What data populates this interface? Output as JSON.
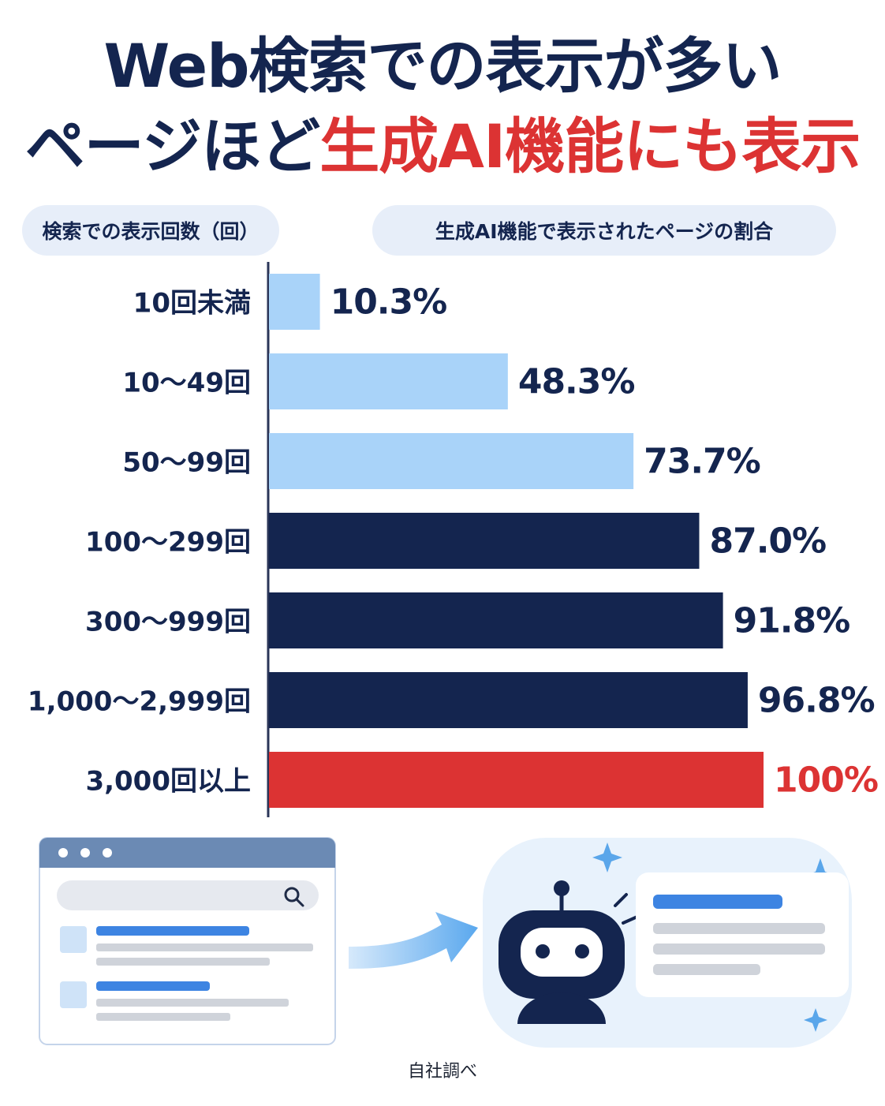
{
  "title": {
    "line1": "Web検索での表示が多い",
    "line2_prefix": "ページほど",
    "line2_accent": "生成AI機能にも表示"
  },
  "headers": {
    "left": "検索での表示回数（回）",
    "right": "生成AI機能で表示されたページの割合"
  },
  "colors": {
    "light": "#a9d3f9",
    "dark": "#14254f",
    "accent": "#dc3333",
    "axis": "#2a3558"
  },
  "chart_data": {
    "type": "bar",
    "orientation": "horizontal",
    "categories": [
      "10回未満",
      "10～49回",
      "50～99回",
      "100～299回",
      "300～999回",
      "1,000～2,999回",
      "3,000回以上"
    ],
    "values": [
      10.3,
      48.3,
      73.7,
      87.0,
      91.8,
      96.8,
      100
    ],
    "value_labels": [
      "10.3%",
      "48.3%",
      "73.7%",
      "87.0%",
      "91.8%",
      "96.8%",
      "100%"
    ],
    "bar_colors": [
      "light",
      "light",
      "light",
      "dark",
      "dark",
      "dark",
      "accent"
    ],
    "xlim": [
      0,
      100
    ],
    "unit": "%"
  },
  "illustration": {
    "left": "search-results-browser-window",
    "arrow": "arrow-right-icon",
    "right": "ai-robot-answer-panel",
    "icons": [
      "search-icon",
      "robot-icon",
      "sparkle-icon"
    ]
  },
  "source": "自社調べ"
}
